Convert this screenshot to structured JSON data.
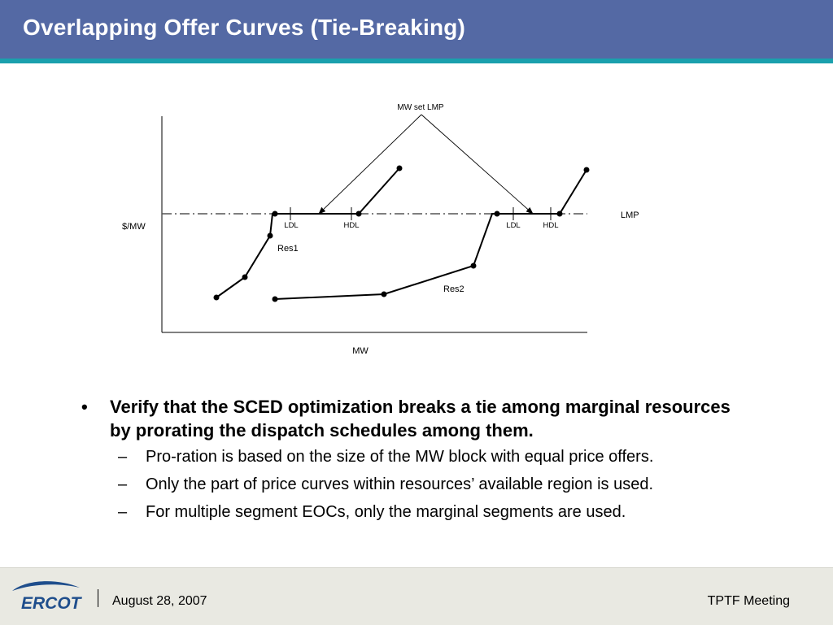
{
  "title": "Overlapping Offer Curves (Tie-Breaking)",
  "diagram": {
    "annotation": "MW set LMP",
    "y_axis_label": "$/MW",
    "x_axis_label": "MW",
    "lmp_label": "LMP",
    "res1_label": "Res1",
    "res2_label": "Res2",
    "res1_ldl": "LDL",
    "res1_hdl": "HDL",
    "res2_ldl": "LDL",
    "res2_hdl": "HDL"
  },
  "bullets": {
    "marker": "•",
    "main": "Verify that the SCED optimization breaks a tie among marginal resources by prorating the dispatch schedules among them.",
    "sub_marker": "–",
    "subs": [
      "Pro-ration is based on the size of the MW block with equal price offers.",
      "Only the part of price curves within resources’ available region is used.",
      "For multiple segment EOCs, only the marginal segments are used."
    ]
  },
  "footer": {
    "logo_text": "ERCOT",
    "date": "August 28, 2007",
    "event": "TPTF Meeting"
  },
  "colors": {
    "header_bg": "#5469a4",
    "header_accent": "#1aa0ad",
    "footer_bg": "#e9e9e2",
    "logo_blue": "#1f4e8c"
  }
}
